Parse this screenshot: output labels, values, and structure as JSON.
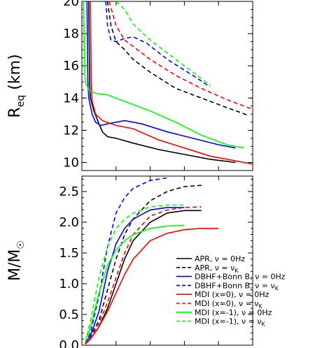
{
  "chart_data": [
    {
      "type": "line",
      "panel": "top",
      "ylabel": "R",
      "ylabel_sub": "eq",
      "ylabel_unit": " (km)",
      "ylim": [
        9.5,
        20
      ],
      "xlim": [
        0,
        100
      ],
      "yticks": [
        "10",
        "12",
        "14",
        "16",
        "18",
        "20"
      ],
      "ytick_values": [
        10,
        12,
        14,
        16,
        18,
        20
      ],
      "grid": false,
      "series": [
        {
          "key": "apr_0",
          "color": "#000000",
          "dash": false,
          "points": [
            [
              4,
              20
            ],
            [
              4.5,
              15
            ],
            [
              5,
              14
            ],
            [
              7,
              13.2
            ],
            [
              10,
              12.4
            ],
            [
              12,
              11.9
            ],
            [
              15,
              11.6
            ],
            [
              20,
              11.5
            ],
            [
              30,
              11.2
            ],
            [
              45,
              10.8
            ],
            [
              60,
              10.5
            ],
            [
              75,
              10.2
            ],
            [
              90,
              10
            ]
          ]
        },
        {
          "key": "apr_k",
          "color": "#000000",
          "dash": true,
          "points": [
            [
              15,
              20
            ],
            [
              17,
              18.5
            ],
            [
              20,
              17.5
            ],
            [
              25,
              17
            ],
            [
              30,
              16.4
            ],
            [
              40,
              15.6
            ],
            [
              55,
              14.6
            ],
            [
              70,
              14
            ],
            [
              85,
              13.4
            ],
            [
              98,
              12.9
            ]
          ]
        },
        {
          "key": "dbhf_0",
          "color": "#0000ff",
          "dash": false,
          "points": [
            [
              3,
              20
            ],
            [
              3.5,
              15
            ],
            [
              4,
              14
            ],
            [
              6,
              13
            ],
            [
              8,
              12.5
            ],
            [
              11,
              12.3
            ],
            [
              15,
              12.4
            ],
            [
              25,
              12.6
            ],
            [
              35,
              12.4
            ],
            [
              50,
              11.9
            ],
            [
              65,
              11.5
            ],
            [
              80,
              11.1
            ],
            [
              90,
              10.9
            ]
          ]
        },
        {
          "key": "dbhf_k",
          "color": "#0000ff",
          "dash": true,
          "points": [
            [
              14,
              20
            ],
            [
              15,
              18.5
            ],
            [
              17,
              17.6
            ],
            [
              20,
              17.5
            ],
            [
              25,
              17.7
            ],
            [
              30,
              17.8
            ],
            [
              38,
              17.4
            ],
            [
              50,
              16.4
            ],
            [
              65,
              15.4
            ],
            [
              75,
              14.7
            ]
          ]
        },
        {
          "key": "mdi0_0",
          "color": "#ff0000",
          "dash": false,
          "points": [
            [
              5,
              20
            ],
            [
              5.5,
              15
            ],
            [
              6,
              13.8
            ],
            [
              8,
              13
            ],
            [
              12,
              12.6
            ],
            [
              20,
              12.3
            ],
            [
              30,
              12.1
            ],
            [
              45,
              11.4
            ],
            [
              60,
              10.9
            ],
            [
              75,
              10.4
            ],
            [
              90,
              10.1
            ],
            [
              100,
              9.9
            ]
          ]
        },
        {
          "key": "mdi0_k",
          "color": "#ff0000",
          "dash": true,
          "points": [
            [
              16,
              20
            ],
            [
              20,
              18.5
            ],
            [
              25,
              17.6
            ],
            [
              30,
              17.2
            ],
            [
              40,
              16.4
            ],
            [
              55,
              15.4
            ],
            [
              70,
              14.6
            ],
            [
              85,
              13.9
            ],
            [
              100,
              13.3
            ]
          ]
        },
        {
          "key": "mdim1_0",
          "color": "#00ff00",
          "dash": false,
          "points": [
            [
              1,
              20
            ],
            [
              1.5,
              16
            ],
            [
              2,
              15
            ],
            [
              4,
              14.5
            ],
            [
              8,
              14.3
            ],
            [
              15,
              14.2
            ],
            [
              25,
              13.8
            ],
            [
              40,
              13.2
            ],
            [
              55,
              12.5
            ],
            [
              70,
              11.7
            ],
            [
              85,
              11.1
            ],
            [
              95,
              10.9
            ]
          ]
        },
        {
          "key": "mdim1_k",
          "color": "#00ff00",
          "dash": true,
          "points": [
            [
              20,
              20
            ],
            [
              25,
              19.5
            ],
            [
              30,
              18.6
            ],
            [
              40,
              17.6
            ],
            [
              50,
              16.8
            ],
            [
              60,
              16
            ],
            [
              70,
              15.2
            ],
            [
              75,
              14.8
            ]
          ]
        }
      ]
    },
    {
      "type": "line",
      "panel": "bottom",
      "ylabel": "M/M",
      "ylabel_sub": "☉",
      "ylim": [
        0,
        2.75
      ],
      "xlim": [
        0,
        100
      ],
      "yticks": [
        "0.0",
        "0.5",
        "1.0",
        "1.5",
        "2.0",
        "2.5"
      ],
      "ytick_values": [
        0,
        0.5,
        1.0,
        1.5,
        2.0,
        2.5
      ],
      "grid": false,
      "legend_position": "lower-right",
      "series": [
        {
          "key": "apr_0",
          "name": "APR, ν = 0Hz",
          "color": "#000000",
          "dash": false,
          "points": [
            [
              2,
              0.02
            ],
            [
              5,
              0.1
            ],
            [
              10,
              0.3
            ],
            [
              15,
              0.6
            ],
            [
              20,
              1.0
            ],
            [
              25,
              1.4
            ],
            [
              30,
              1.7
            ],
            [
              40,
              2.0
            ],
            [
              50,
              2.15
            ],
            [
              60,
              2.19
            ],
            [
              70,
              2.19
            ]
          ]
        },
        {
          "key": "apr_k",
          "name": "APR, ν = ν",
          "name_sub": "K",
          "color": "#000000",
          "dash": true,
          "points": [
            [
              2,
              0.02
            ],
            [
              5,
              0.15
            ],
            [
              10,
              0.4
            ],
            [
              15,
              0.9
            ],
            [
              20,
              1.4
            ],
            [
              25,
              1.8
            ],
            [
              30,
              2.05
            ],
            [
              40,
              2.35
            ],
            [
              50,
              2.5
            ],
            [
              60,
              2.58
            ],
            [
              70,
              2.6
            ]
          ]
        },
        {
          "key": "dbhf_0",
          "name": "DBHF+Bonn B, ν = 0Hz",
          "color": "#0000ff",
          "dash": false,
          "points": [
            [
              2,
              0.03
            ],
            [
              5,
              0.15
            ],
            [
              10,
              0.55
            ],
            [
              15,
              1.2
            ],
            [
              20,
              1.65
            ],
            [
              25,
              1.9
            ],
            [
              30,
              2.05
            ],
            [
              40,
              2.2
            ],
            [
              50,
              2.24
            ],
            [
              60,
              2.24
            ]
          ]
        },
        {
          "key": "dbhf_k",
          "name": "DBHF+Bonn B, ν = ν",
          "name_sub": "K",
          "color": "#0000ff",
          "dash": true,
          "points": [
            [
              2,
              0.03
            ],
            [
              5,
              0.2
            ],
            [
              10,
              0.8
            ],
            [
              15,
              1.6
            ],
            [
              20,
              2.15
            ],
            [
              25,
              2.4
            ],
            [
              30,
              2.55
            ],
            [
              40,
              2.68
            ],
            [
              50,
              2.72
            ]
          ]
        },
        {
          "key": "mdi0_0",
          "name": "MDI (x=0), ν = 0Hz",
          "color": "#ff0000",
          "dash": false,
          "points": [
            [
              2,
              0.02
            ],
            [
              5,
              0.1
            ],
            [
              10,
              0.3
            ],
            [
              15,
              0.55
            ],
            [
              20,
              0.85
            ],
            [
              25,
              1.15
            ],
            [
              30,
              1.4
            ],
            [
              40,
              1.7
            ],
            [
              50,
              1.82
            ],
            [
              60,
              1.88
            ],
            [
              70,
              1.9
            ],
            [
              80,
              1.9
            ]
          ]
        },
        {
          "key": "mdi0_k",
          "name": "MDI (x=0), ν = ν",
          "name_sub": "K",
          "color": "#ff0000",
          "dash": true,
          "points": [
            [
              2,
              0.02
            ],
            [
              5,
              0.12
            ],
            [
              10,
              0.35
            ],
            [
              15,
              0.7
            ],
            [
              20,
              1.1
            ],
            [
              25,
              1.5
            ],
            [
              30,
              1.8
            ],
            [
              40,
              2.1
            ],
            [
              50,
              2.2
            ],
            [
              60,
              2.24
            ],
            [
              70,
              2.25
            ]
          ]
        },
        {
          "key": "mdim1_0",
          "name": "MDI (x=-1), ν = 0Hz",
          "color": "#00ff00",
          "dash": false,
          "points": [
            [
              2,
              0.05
            ],
            [
              5,
              0.3
            ],
            [
              10,
              0.85
            ],
            [
              15,
              1.3
            ],
            [
              20,
              1.55
            ],
            [
              25,
              1.7
            ],
            [
              30,
              1.8
            ],
            [
              40,
              1.9
            ],
            [
              50,
              1.94
            ],
            [
              60,
              1.95
            ]
          ]
        },
        {
          "key": "mdim1_k",
          "name": "MDI (x=-1), ν = ν",
          "name_sub": "K",
          "color": "#00ff00",
          "dash": true,
          "points": [
            [
              2,
              0.05
            ],
            [
              5,
              0.4
            ],
            [
              10,
              1.1
            ],
            [
              15,
              1.6
            ],
            [
              20,
              1.9
            ],
            [
              25,
              2.05
            ],
            [
              30,
              2.15
            ],
            [
              40,
              2.25
            ],
            [
              50,
              2.28
            ],
            [
              60,
              2.28
            ]
          ]
        }
      ]
    }
  ]
}
